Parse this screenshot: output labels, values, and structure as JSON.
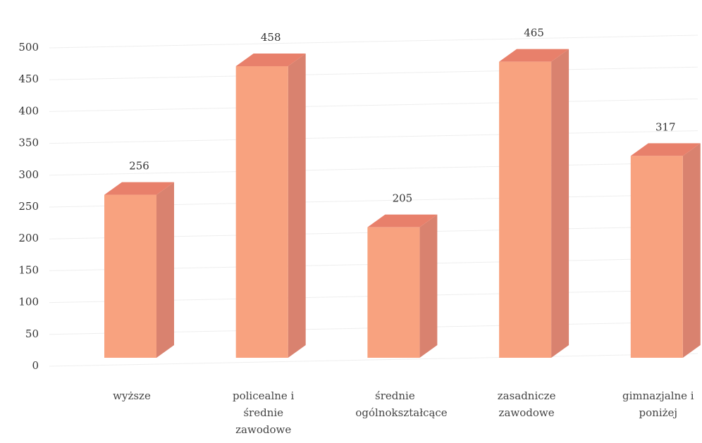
{
  "chart_data": {
    "type": "bar3d",
    "categories": [
      "wyższe",
      "policealne i średnie zawodowe",
      "średnie ogólnokształcące",
      "zasadnicze zawodowe",
      "gimnazjalne i poniżej"
    ],
    "values": [
      256,
      458,
      205,
      465,
      317
    ],
    "color": "#f8a27f",
    "ylim": [
      0,
      500
    ],
    "yticks": [
      0,
      50,
      100,
      150,
      200,
      250,
      300,
      350,
      400,
      450,
      500
    ],
    "grid": true
  }
}
